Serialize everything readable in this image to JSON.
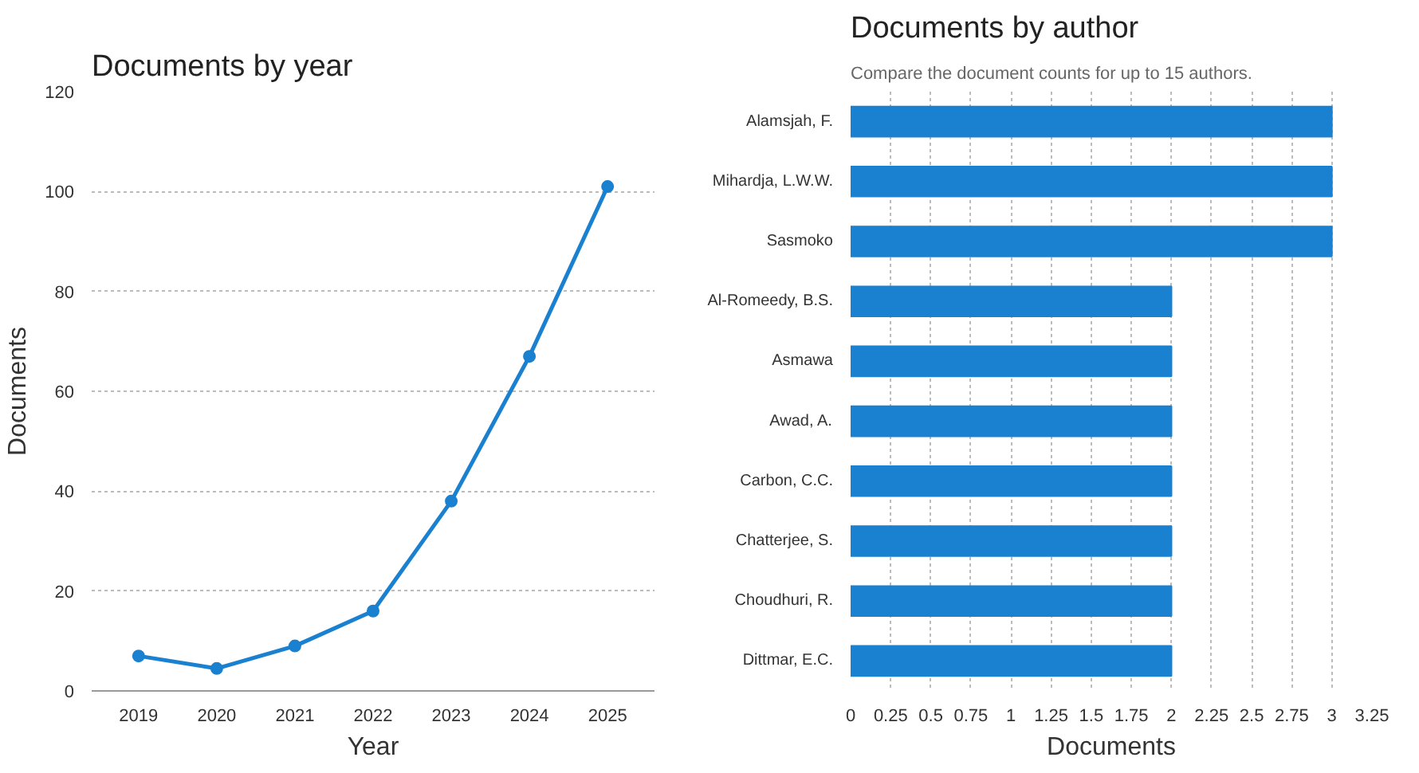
{
  "chart_data": [
    {
      "type": "line",
      "title": "Documents by year",
      "xlabel": "Year",
      "ylabel": "Documents",
      "categories": [
        "2019",
        "2020",
        "2021",
        "2022",
        "2023",
        "2024",
        "2025"
      ],
      "series": [
        {
          "color": "#1a80d0",
          "values": [
            7,
            4.5,
            9,
            16,
            38,
            67,
            101
          ]
        }
      ],
      "ylim": [
        0,
        120
      ],
      "yticks": [
        0,
        20,
        40,
        60,
        80,
        100,
        120
      ],
      "grid": "y",
      "marker": "circle",
      "line_style": "solid"
    },
    {
      "type": "bar",
      "orientation": "horizontal",
      "title": "Documents by author",
      "subtitle": "Compare the document counts for up to 15 authors.",
      "xlabel": "Documents",
      "categories": [
        "Alamsjah, F.",
        "Mihardja, L.W.W.",
        "Sasmoko",
        "Al-Romeedy, B.S.",
        "Asmawa",
        "Awad, A.",
        "Carbon, C.C.",
        "Chatterjee, S.",
        "Choudhuri, R.",
        "Dittmar, E.C."
      ],
      "series": [
        {
          "color": "#1a80d0",
          "values": [
            3,
            3,
            3,
            2,
            2,
            2,
            2,
            2,
            2,
            2
          ]
        }
      ],
      "xlim": [
        0,
        3.25
      ],
      "xticks": [
        0,
        0.25,
        0.5,
        0.75,
        1,
        1.25,
        1.5,
        1.75,
        2,
        2.25,
        2.5,
        2.75,
        3,
        3.25
      ],
      "grid": "x"
    }
  ]
}
